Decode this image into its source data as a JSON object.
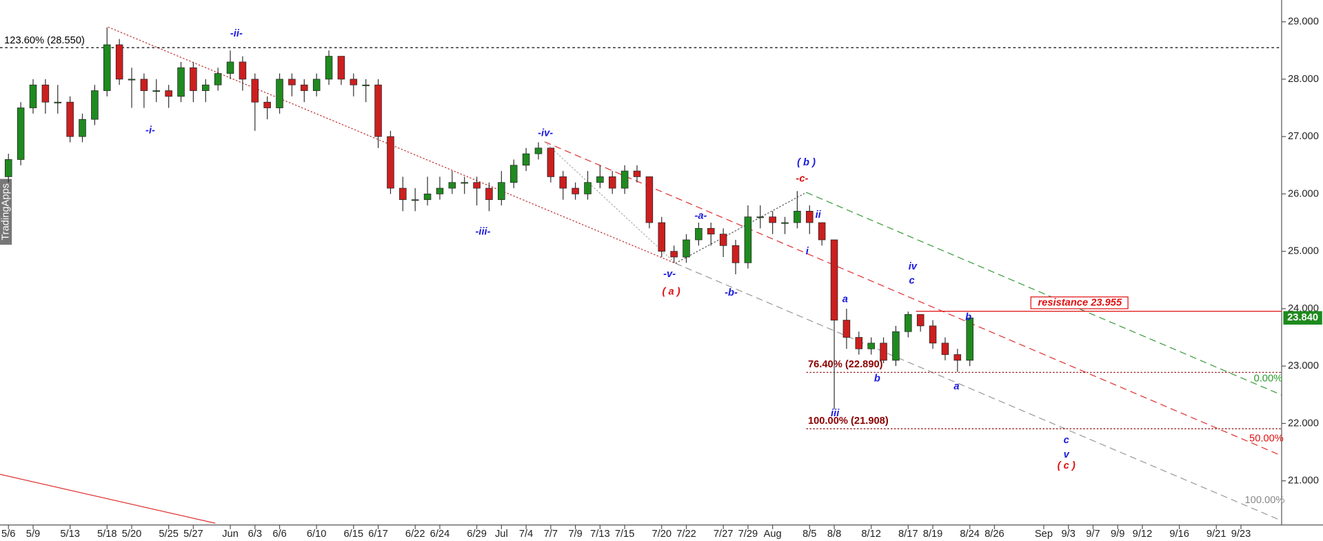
{
  "chart_data": {
    "type": "candlestick",
    "watermark": "TradingApps",
    "up_color": "#1f8a1f",
    "down_color": "#cc1f1f",
    "xlim": [
      -0.685,
      103.3
    ],
    "xticks": [
      {
        "value": 0,
        "label": "5/6"
      },
      {
        "value": 2,
        "label": "5/9"
      },
      {
        "value": 5,
        "label": "5/13"
      },
      {
        "value": 8,
        "label": "5/18"
      },
      {
        "value": 10,
        "label": "5/20"
      },
      {
        "value": 13,
        "label": "5/25"
      },
      {
        "value": 15,
        "label": "5/27"
      },
      {
        "value": 18,
        "label": "Jun"
      },
      {
        "value": 20,
        "label": "6/3"
      },
      {
        "value": 22,
        "label": "6/6"
      },
      {
        "value": 25,
        "label": "6/10"
      },
      {
        "value": 28,
        "label": "6/15"
      },
      {
        "value": 30,
        "label": "6/17"
      },
      {
        "value": 33,
        "label": "6/22"
      },
      {
        "value": 35,
        "label": "6/24"
      },
      {
        "value": 38,
        "label": "6/29"
      },
      {
        "value": 40,
        "label": "Jul"
      },
      {
        "value": 42,
        "label": "7/4"
      },
      {
        "value": 44,
        "label": "7/7"
      },
      {
        "value": 46,
        "label": "7/9"
      },
      {
        "value": 48,
        "label": "7/13"
      },
      {
        "value": 50,
        "label": "7/15"
      },
      {
        "value": 53,
        "label": "7/20"
      },
      {
        "value": 55,
        "label": "7/22"
      },
      {
        "value": 58,
        "label": "7/27"
      },
      {
        "value": 60,
        "label": "7/29"
      },
      {
        "value": 62,
        "label": "Aug"
      },
      {
        "value": 65,
        "label": "8/5"
      },
      {
        "value": 67,
        "label": "8/8"
      },
      {
        "value": 70,
        "label": "8/12"
      },
      {
        "value": 73,
        "label": "8/17"
      },
      {
        "value": 75,
        "label": "8/19"
      },
      {
        "value": 78,
        "label": "8/24"
      },
      {
        "value": 80,
        "label": "8/26"
      },
      {
        "value": 84,
        "label": "Sep"
      },
      {
        "value": 86,
        "label": "9/3"
      },
      {
        "value": 88,
        "label": "9/7"
      },
      {
        "value": 90,
        "label": "9/9"
      },
      {
        "value": 92,
        "label": "9/12"
      },
      {
        "value": 95,
        "label": "9/16"
      },
      {
        "value": 98,
        "label": "9/21"
      },
      {
        "value": 100,
        "label": "9/23"
      }
    ],
    "ylim": [
      20.26,
      29.38
    ],
    "yticks": [
      {
        "value": 21,
        "label": "21.000"
      },
      {
        "value": 22,
        "label": "22.000"
      },
      {
        "value": 23,
        "label": "23.000"
      },
      {
        "value": 24,
        "label": "24.000"
      },
      {
        "value": 25,
        "label": "25.000"
      },
      {
        "value": 26,
        "label": "26.000"
      },
      {
        "value": 27,
        "label": "27.000"
      },
      {
        "value": 28,
        "label": "28.000"
      },
      {
        "value": 29,
        "label": "29.000"
      }
    ],
    "last_price": {
      "value": 23.84,
      "label": "23.840"
    },
    "candles": [
      [
        26.3,
        26.7,
        26.2,
        26.6
      ],
      [
        26.6,
        27.6,
        26.5,
        27.5
      ],
      [
        27.5,
        28.0,
        27.4,
        27.9
      ],
      [
        27.9,
        28.0,
        27.4,
        27.6
      ],
      [
        27.6,
        27.9,
        27.4,
        27.6
      ],
      [
        27.6,
        27.7,
        26.9,
        27.0
      ],
      [
        27.0,
        27.4,
        26.9,
        27.3
      ],
      [
        27.3,
        27.9,
        27.2,
        27.8
      ],
      [
        27.8,
        28.9,
        27.7,
        28.6
      ],
      [
        28.6,
        28.7,
        27.9,
        28.0
      ],
      [
        28.0,
        28.2,
        27.5,
        28.0
      ],
      [
        28.0,
        28.1,
        27.5,
        27.8
      ],
      [
        27.8,
        28.0,
        27.6,
        27.8
      ],
      [
        27.8,
        27.9,
        27.5,
        27.7
      ],
      [
        27.7,
        28.3,
        27.6,
        28.2
      ],
      [
        28.2,
        28.3,
        27.6,
        27.8
      ],
      [
        27.8,
        28.0,
        27.6,
        27.9
      ],
      [
        27.9,
        28.2,
        27.8,
        28.1
      ],
      [
        28.1,
        28.5,
        28.0,
        28.3
      ],
      [
        28.3,
        28.4,
        27.8,
        28.0
      ],
      [
        28.0,
        28.1,
        27.1,
        27.6
      ],
      [
        27.6,
        27.7,
        27.3,
        27.5
      ],
      [
        27.5,
        28.1,
        27.4,
        28.0
      ],
      [
        28.0,
        28.1,
        27.7,
        27.9
      ],
      [
        27.9,
        28.0,
        27.6,
        27.8
      ],
      [
        27.8,
        28.1,
        27.7,
        28.0
      ],
      [
        28.0,
        28.5,
        27.9,
        28.4
      ],
      [
        28.4,
        28.4,
        27.9,
        28.0
      ],
      [
        28.0,
        28.1,
        27.7,
        27.9
      ],
      [
        27.9,
        28.0,
        27.6,
        27.9
      ],
      [
        27.9,
        28.0,
        26.8,
        27.0
      ],
      [
        27.0,
        27.1,
        26.0,
        26.1
      ],
      [
        26.1,
        26.3,
        25.7,
        25.9
      ],
      [
        25.9,
        26.1,
        25.7,
        25.9
      ],
      [
        25.9,
        26.3,
        25.8,
        26.0
      ],
      [
        26.0,
        26.3,
        25.9,
        26.1
      ],
      [
        26.1,
        26.4,
        26.0,
        26.2
      ],
      [
        26.2,
        26.3,
        26.0,
        26.2
      ],
      [
        26.2,
        26.3,
        25.8,
        26.1
      ],
      [
        26.1,
        26.2,
        25.7,
        25.9
      ],
      [
        25.9,
        26.4,
        25.8,
        26.2
      ],
      [
        26.2,
        26.6,
        26.1,
        26.5
      ],
      [
        26.5,
        26.8,
        26.4,
        26.7
      ],
      [
        26.7,
        26.9,
        26.6,
        26.8
      ],
      [
        26.8,
        26.8,
        26.2,
        26.3
      ],
      [
        26.3,
        26.4,
        25.9,
        26.1
      ],
      [
        26.1,
        26.2,
        25.9,
        26.0
      ],
      [
        26.0,
        26.4,
        25.9,
        26.2
      ],
      [
        26.2,
        26.5,
        26.1,
        26.3
      ],
      [
        26.3,
        26.4,
        26.0,
        26.1
      ],
      [
        26.1,
        26.5,
        26.0,
        26.4
      ],
      [
        26.4,
        26.5,
        26.2,
        26.3
      ],
      [
        26.3,
        26.3,
        25.4,
        25.5
      ],
      [
        25.5,
        25.6,
        24.9,
        25.0
      ],
      [
        25.0,
        25.1,
        24.8,
        24.9
      ],
      [
        24.9,
        25.3,
        24.8,
        25.2
      ],
      [
        25.2,
        25.5,
        25.1,
        25.4
      ],
      [
        25.4,
        25.5,
        25.1,
        25.3
      ],
      [
        25.3,
        25.4,
        24.9,
        25.1
      ],
      [
        25.1,
        25.2,
        24.6,
        24.8
      ],
      [
        24.8,
        25.8,
        24.7,
        25.6
      ],
      [
        25.6,
        25.8,
        25.4,
        25.6
      ],
      [
        25.6,
        25.7,
        25.3,
        25.5
      ],
      [
        25.5,
        25.6,
        25.3,
        25.5
      ],
      [
        25.5,
        26.05,
        25.4,
        25.7
      ],
      [
        25.7,
        25.8,
        25.3,
        25.5
      ],
      [
        25.5,
        25.5,
        25.1,
        25.2
      ],
      [
        25.2,
        25.2,
        22.25,
        23.8
      ],
      [
        23.8,
        24.0,
        23.3,
        23.5
      ],
      [
        23.5,
        23.6,
        23.2,
        23.3
      ],
      [
        23.3,
        23.5,
        23.2,
        23.4
      ],
      [
        23.4,
        23.5,
        23.05,
        23.1
      ],
      [
        23.1,
        23.7,
        23.0,
        23.6
      ],
      [
        23.6,
        23.95,
        23.5,
        23.9
      ],
      [
        23.9,
        23.9,
        23.6,
        23.7
      ],
      [
        23.7,
        23.8,
        23.3,
        23.4
      ],
      [
        23.4,
        23.5,
        23.1,
        23.2
      ],
      [
        23.2,
        23.3,
        22.9,
        23.1
      ],
      [
        23.1,
        23.85,
        23.0,
        23.84
      ]
    ],
    "levels": [
      {
        "label": "123.60% (28.550)",
        "value": 28.55,
        "color": "#000000"
      },
      {
        "label": "76.40% (22.890)",
        "value": 22.89,
        "color": "#8b0000"
      },
      {
        "label": "100.00% (21.908)",
        "value": 21.908,
        "color": "#8b0000"
      },
      {
        "label": "resistance 23.955",
        "value": 23.955,
        "color": "#e01010"
      }
    ],
    "annotations": [
      {
        "text": "-i-",
        "color": "#1a1adf"
      },
      {
        "text": "-ii-",
        "color": "#1a1adf"
      },
      {
        "text": "-iii-",
        "color": "#1a1adf"
      },
      {
        "text": "-iv-",
        "color": "#1a1adf"
      },
      {
        "text": "-v-",
        "color": "#1a1adf"
      },
      {
        "text": "( a )",
        "color": "#e01010"
      },
      {
        "text": "-a-",
        "color": "#1a1adf"
      },
      {
        "text": "-b-",
        "color": "#1a1adf"
      },
      {
        "text": "( b )",
        "color": "#1a1adf"
      },
      {
        "text": "-c-",
        "color": "#e01010"
      },
      {
        "text": "ii",
        "color": "#1a1adf"
      },
      {
        "text": "i",
        "color": "#1a1adf"
      },
      {
        "text": "a",
        "color": "#1a1adf"
      },
      {
        "text": "iii",
        "color": "#1a1adf"
      },
      {
        "text": "b",
        "color": "#1a1adf"
      },
      {
        "text": "iv",
        "color": "#1a1adf"
      },
      {
        "text": "c",
        "color": "#1a1adf"
      },
      {
        "text": "b",
        "color": "#1a1adf"
      },
      {
        "text": "a",
        "color": "#1a1adf"
      },
      {
        "text": "c",
        "color": "#1a1adf"
      },
      {
        "text": "v",
        "color": "#1a1adf"
      },
      {
        "text": "( c )",
        "color": "#e01010"
      },
      {
        "text": "0.00%",
        "color": "#2a9a2a"
      },
      {
        "text": "50.00%",
        "color": "#e01010"
      },
      {
        "text": "100.00%",
        "color": "#888888"
      }
    ]
  }
}
